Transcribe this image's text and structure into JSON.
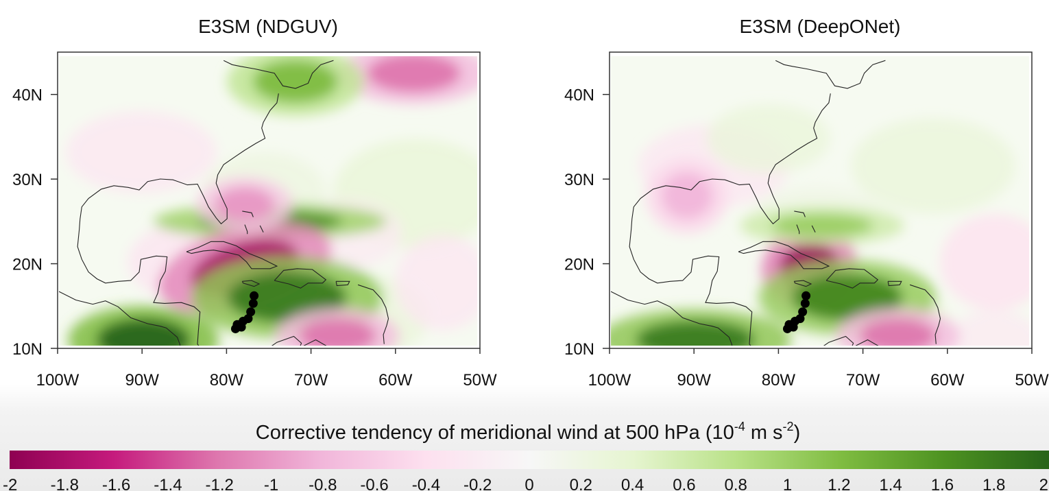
{
  "chart_data": [
    {
      "type": "heatmap",
      "title": "E3SM (NDGUV)",
      "x_ticks": [
        "100W",
        "90W",
        "80W",
        "70W",
        "60W",
        "50W"
      ],
      "y_ticks": [
        "10N",
        "20N",
        "30N",
        "40N"
      ],
      "xlim": [
        -100,
        -50
      ],
      "ylim": [
        10,
        45
      ],
      "track_points": [
        [
          -79.1,
          12.8
        ],
        [
          -78.9,
          13.3
        ],
        [
          -78.4,
          13.0
        ],
        [
          -78.2,
          13.7
        ],
        [
          -77.6,
          14.0
        ],
        [
          -77.3,
          14.8
        ],
        [
          -77.0,
          15.8
        ],
        [
          -76.9,
          16.7
        ]
      ],
      "features": [
        {
          "label": "green band north of Cuba",
          "lon": -75,
          "lat": 25.5,
          "value": 1.6
        },
        {
          "label": "magenta core",
          "lon": -78,
          "lat": 20,
          "value": -1.8
        },
        {
          "label": "green core Hispaniola",
          "lon": -73,
          "lat": 16.5,
          "value": 1.8
        },
        {
          "label": "green southwest",
          "lon": -90,
          "lat": 11.5,
          "value": 2.0
        },
        {
          "label": "magenta north",
          "lon": -58,
          "lat": 43,
          "value": -1.2
        },
        {
          "label": "green northeast",
          "lon": -72,
          "lat": 42,
          "value": 1.2
        },
        {
          "label": "magenta south",
          "lon": -67,
          "lat": 12,
          "value": -1.2
        },
        {
          "label": "magenta Florida",
          "lon": -78,
          "lat": 27.5,
          "value": -1.0
        }
      ]
    },
    {
      "type": "heatmap",
      "title": "E3SM (DeepONet)",
      "x_ticks": [
        "100W",
        "90W",
        "80W",
        "70W",
        "60W",
        "50W"
      ],
      "y_ticks": [
        "10N",
        "20N",
        "30N",
        "40N"
      ],
      "xlim": [
        -100,
        -50
      ],
      "ylim": [
        10,
        45
      ],
      "track_points": [
        [
          -79.1,
          12.8
        ],
        [
          -78.9,
          13.3
        ],
        [
          -78.4,
          13.0
        ],
        [
          -78.2,
          13.7
        ],
        [
          -77.6,
          14.0
        ],
        [
          -77.3,
          14.8
        ],
        [
          -77.0,
          15.8
        ],
        [
          -76.9,
          16.7
        ]
      ],
      "features": [
        {
          "label": "magenta core",
          "lon": -76.5,
          "lat": 20,
          "value": -1.9
        },
        {
          "label": "green core Hispaniola",
          "lon": -72,
          "lat": 16.5,
          "value": 1.7
        },
        {
          "label": "green band north of Cuba",
          "lon": -75,
          "lat": 25,
          "value": 1.0
        },
        {
          "label": "green southwest",
          "lon": -90,
          "lat": 11.5,
          "value": 1.8
        },
        {
          "label": "magenta south",
          "lon": -66,
          "lat": 12,
          "value": -1.2
        },
        {
          "label": "magenta west",
          "lon": -91,
          "lat": 28.5,
          "value": -0.8
        }
      ]
    }
  ],
  "colorbar": {
    "label_main": "Corrective tendency of meridional wind at 500 hPa (10",
    "label_exp1": "-4",
    "label_mid": " m s",
    "label_exp2": "-2",
    "label_end": ")",
    "ticks": [
      "-2",
      "-1.8",
      "-1.6",
      "-1.4",
      "-1.2",
      "-1",
      "-0.8",
      "-0.6",
      "-0.4",
      "-0.2",
      "0",
      "0.2",
      "0.4",
      "0.6",
      "0.8",
      "1",
      "1.2",
      "1.4",
      "1.6",
      "1.8",
      "2"
    ],
    "range": [
      -2,
      2
    ],
    "colors": {
      "min": "#8e0152",
      "mid": "#f7f7f7",
      "max": "#276419"
    }
  }
}
